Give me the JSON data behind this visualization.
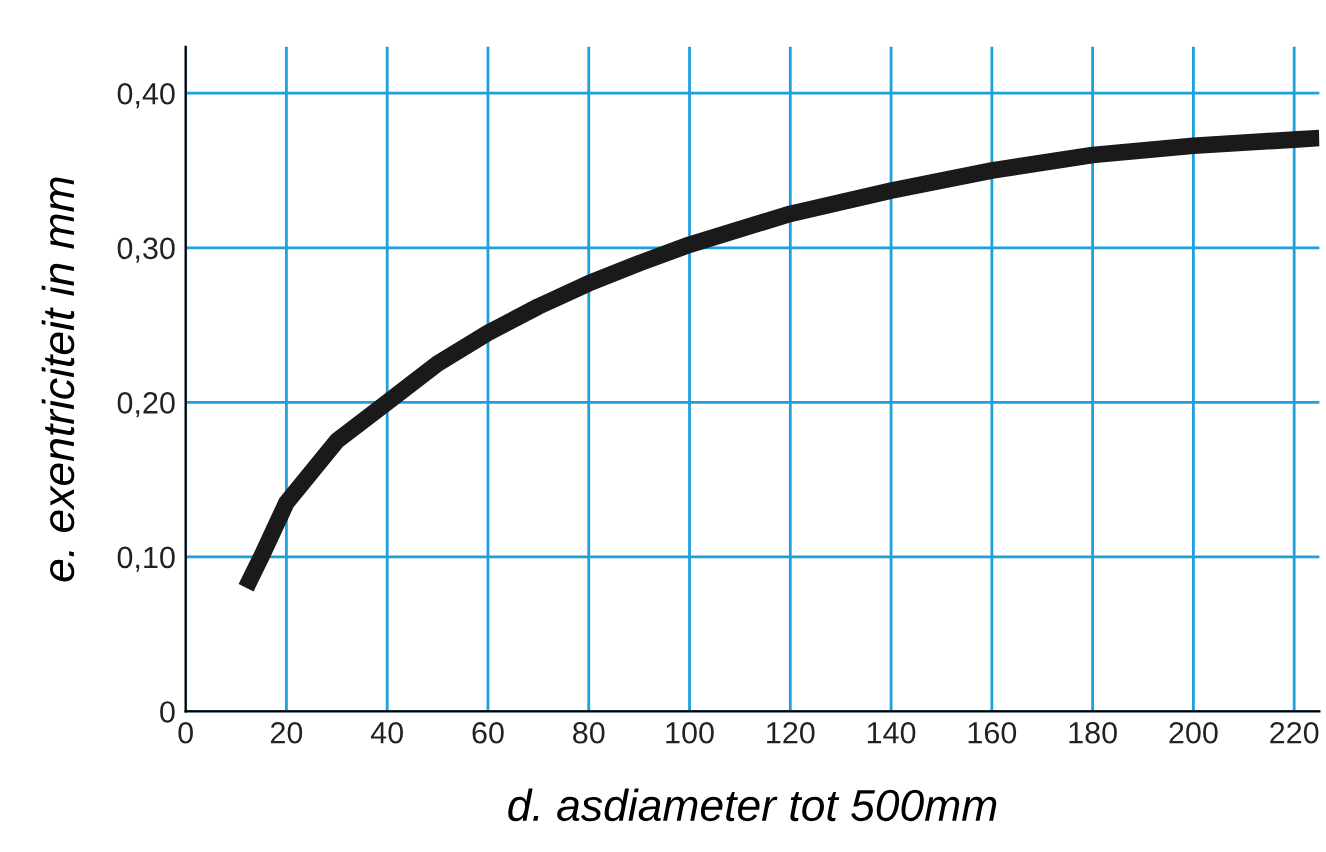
{
  "chart_data": {
    "type": "line",
    "xlabel": "d. asdiameter tot 500mm",
    "ylabel": "e. exentriciteit in mm",
    "x": [
      12,
      15,
      20,
      30,
      40,
      50,
      60,
      70,
      80,
      90,
      100,
      120,
      140,
      160,
      180,
      200,
      220,
      225
    ],
    "series": [
      {
        "color": "#1a1a1a",
        "values": [
          0.08,
          0.1,
          0.135,
          0.175,
          0.2,
          0.225,
          0.245,
          0.262,
          0.277,
          0.29,
          0.302,
          0.322,
          0.337,
          0.35,
          0.36,
          0.366,
          0.37,
          0.371
        ]
      }
    ],
    "xlim": [
      0,
      225
    ],
    "xticks": [
      0,
      20,
      40,
      60,
      80,
      100,
      120,
      140,
      160,
      180,
      200,
      220
    ],
    "ylim": [
      0,
      0.43
    ],
    "yticks": [
      0,
      {
        "value": 0.1,
        "label": "0,10"
      },
      {
        "value": 0.2,
        "label": "0,20"
      },
      {
        "value": 0.3,
        "label": "0,30"
      },
      {
        "value": 0.4,
        "label": "0,40"
      }
    ],
    "grid": true,
    "marker": "none",
    "line_style": "solid",
    "legend": false
  }
}
